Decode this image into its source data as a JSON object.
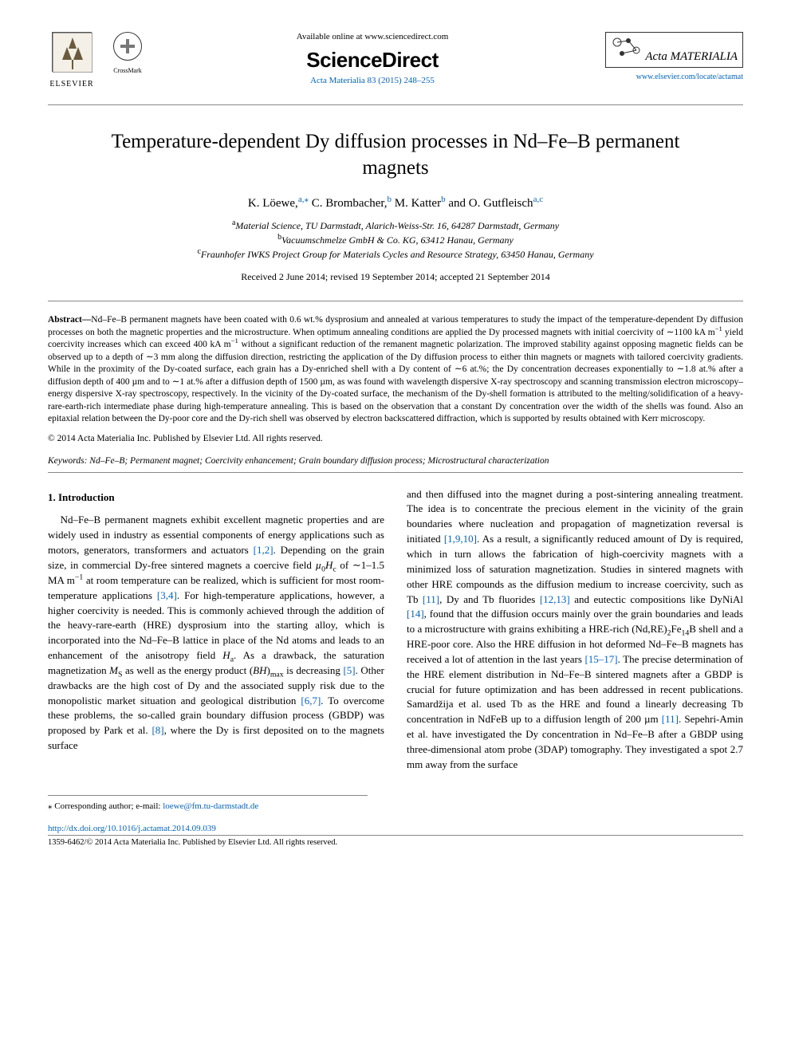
{
  "header": {
    "elsevier_label": "ELSEVIER",
    "crossmark_label": "CrossMark",
    "available_text": "Available online at www.sciencedirect.com",
    "sciencedirect_label": "ScienceDirect",
    "citation_text": "Acta Materialia 83 (2015) 248–255",
    "journal_name": "Acta MATERIALIA",
    "journal_url_text": "www.elsevier.com/locate/actamat"
  },
  "title": "Temperature-dependent Dy diffusion processes in Nd–Fe–B permanent magnets",
  "authors_html": "K. Löewe,<a class='affil-sup' href='#'>a,⁎</a> C. Brombacher,<a class='affil-sup' href='#'>b</a> M. Katter<a class='affil-sup' href='#'>b</a> and O. Gutfleisch<a class='affil-sup' href='#'>a,c</a>",
  "affiliations": [
    {
      "sup": "a",
      "text": "Material Science, TU Darmstadt, Alarich-Weiss-Str. 16, 64287 Darmstadt, Germany"
    },
    {
      "sup": "b",
      "text": "Vacuumschmelze GmbH & Co. KG, 63412 Hanau, Germany"
    },
    {
      "sup": "c",
      "text": "Fraunhofer IWKS Project Group for Materials Cycles and Resource Strategy, 63450 Hanau, Germany"
    }
  ],
  "dates": "Received 2 June 2014; revised 19 September 2014; accepted 21 September 2014",
  "abstract_label": "Abstract—",
  "abstract_html": "Nd–Fe–B permanent magnets have been coated with 0.6 wt.% dysprosium and annealed at various temperatures to study the impact of the temperature-dependent Dy diffusion processes on both the magnetic properties and the microstructure. When optimum annealing conditions are applied the Dy processed magnets with initial coercivity of ∼1100 kA m<sup>−1</sup> yield coercivity increases which can exceed 400 kA m<sup>−1</sup> without a significant reduction of the remanent magnetic polarization. The improved stability against opposing magnetic fields can be observed up to a depth of ∼3 mm along the diffusion direction, restricting the application of the Dy diffusion process to either thin magnets or magnets with tailored coercivity gradients. While in the proximity of the Dy-coated surface, each grain has a Dy-enriched shell with a Dy content of ∼6 at.%; the Dy concentration decreases exponentially to ∼1.8 at.% after a diffusion depth of 400 µm and to ∼1 at.% after a diffusion depth of 1500 µm, as was found with wavelength dispersive X-ray spectroscopy and scanning transmission electron microscopy–energy dispersive X-ray spectroscopy, respectively. In the vicinity of the Dy-coated surface, the mechanism of the Dy-shell formation is attributed to the melting/solidification of a heavy-rare-earth-rich intermediate phase during high-temperature annealing. This is based on the observation that a constant Dy concentration over the width of the shells was found. Also an epitaxial relation between the Dy-poor core and the Dy-rich shell was observed by electron backscattered diffraction, which is supported by results obtained with Kerr microscopy.",
  "copyright_abs": "© 2014 Acta Materialia Inc. Published by Elsevier Ltd. All rights reserved.",
  "keywords_label": "Keywords:",
  "keywords_text": " Nd–Fe–B; Permanent magnet; Coercivity enhancement; Grain boundary diffusion process; Microstructural characterization",
  "section1_head": "1. Introduction",
  "body_left_html": "Nd–Fe–B permanent magnets exhibit excellent magnetic properties and are widely used in industry as essential components of energy applications such as motors, generators, transformers and actuators <a class='ref' href='#'>[1,2]</a>. Depending on the grain size, in commercial Dy-free sintered magnets a coercive field <span class='ital'>µ</span><sub>0</sub><span class='ital'>H</span><sub>c</sub> of ∼1–1.5 MA m<sup>−1</sup> at room temperature can be realized, which is sufficient for most room-temperature applications <a class='ref' href='#'>[3,4]</a>. For high-temperature applications, however, a higher coercivity is needed. This is commonly achieved through the addition of the heavy-rare-earth (HRE) dysprosium into the starting alloy, which is incorporated into the Nd–Fe–B lattice in place of the Nd atoms and leads to an enhancement of the anisotropy field <span class='ital'>H</span><sub>a</sub>. As a drawback, the saturation magnetization <span class='ital'>M</span><sub>S</sub> as well as the energy product (<span class='ital'>BH</span>)<sub>max</sub> is decreasing <a class='ref' href='#'>[5]</a>. Other drawbacks are the high cost of Dy and the associated supply risk due to the monopolistic market situation and geological distribution <a class='ref' href='#'>[6,7]</a>. To overcome these problems, the so-called grain boundary diffusion process (GBDP) was proposed by Park et al. <a class='ref' href='#'>[8]</a>, where the Dy is first deposited on to the magnets surface",
  "body_right_html": "and then diffused into the magnet during a post-sintering annealing treatment. The idea is to concentrate the precious element in the vicinity of the grain boundaries where nucleation and propagation of magnetization reversal is initiated <a class='ref' href='#'>[1,9,10]</a>. As a result, a significantly reduced amount of Dy is required, which in turn allows the fabrication of high-coercivity magnets with a minimized loss of saturation magnetization. Studies in sintered magnets with other HRE compounds as the diffusion medium to increase coercivity, such as Tb <a class='ref' href='#'>[11]</a>, Dy and Tb fluorides <a class='ref' href='#'>[12,13]</a> and eutectic compositions like DyNiAl <a class='ref' href='#'>[14]</a>, found that the diffusion occurs mainly over the grain boundaries and leads to a microstructure with grains exhibiting a HRE-rich (Nd,RE)<sub>2</sub>Fe<sub>14</sub>B shell and a HRE-poor core. Also the HRE diffusion in hot deformed Nd–Fe–B magnets has received a lot of attention in the last years <a class='ref' href='#'>[15–17]</a>. The precise determination of the HRE element distribution in Nd–Fe–B sintered magnets after a GBDP is crucial for future optimization and has been addressed in recent publications. Samardžija et al. used Tb as the HRE and found a linearly decreasing Tb concentration in NdFeB up to a diffusion length of 200 µm <a class='ref' href='#'>[11]</a>. Sepehri-Amin et al. have investigated the Dy concentration in Nd–Fe–B after a GBDP using three-dimensional atom probe (3DAP) tomography. They investigated a spot 2.7 mm away from the surface",
  "corr_author_html": "⁎ Corresponding author; e-mail: <a href='#'>loewe@fm.tu-darmstadt.de</a>",
  "doi_text": "http://dx.doi.org/10.1016/j.actamat.2014.09.039",
  "bottom_copyright": "1359-6462/© 2014 Acta Materialia Inc. Published by Elsevier Ltd. All rights reserved.",
  "colors": {
    "link": "#0066cc",
    "text": "#000000",
    "rule": "#888888",
    "background": "#ffffff"
  }
}
